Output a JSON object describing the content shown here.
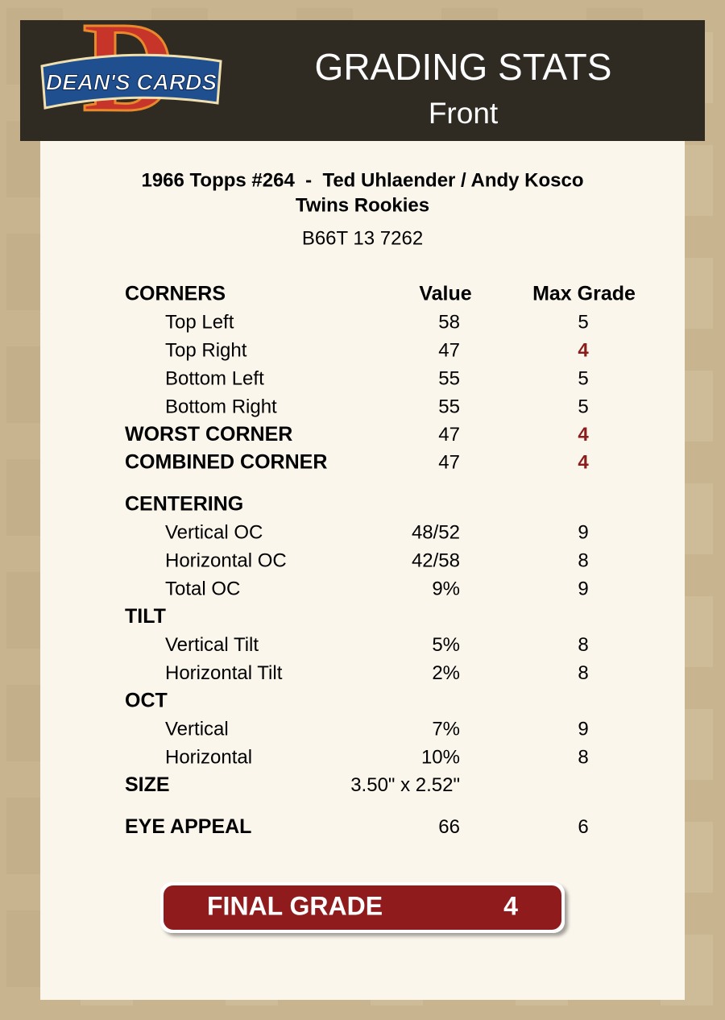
{
  "logo": {
    "initial": "D",
    "text": "DEAN'S CARDS"
  },
  "header": {
    "title": "GRADING STATS",
    "subtitle": "Front"
  },
  "card": {
    "title": "1966 Topps #264  -  Ted Uhlaender / Andy Kosco",
    "subtitle": "Twins Rookies",
    "cert": "B66T 13 7262"
  },
  "table": {
    "columns": [
      "Value",
      "Max Grade"
    ],
    "rows": [
      {
        "label": "CORNERS",
        "kind": "section"
      },
      {
        "label": "Top Left",
        "kind": "item",
        "value": 58,
        "max_grade": 5
      },
      {
        "label": "Top Right",
        "kind": "item",
        "value": 47,
        "max_grade": 4,
        "flag": true
      },
      {
        "label": "Bottom Left",
        "kind": "item",
        "value": 55,
        "max_grade": 5
      },
      {
        "label": "Bottom Right",
        "kind": "item",
        "value": 55,
        "max_grade": 5
      },
      {
        "label": "WORST CORNER",
        "kind": "section",
        "value": 47,
        "max_grade": 4,
        "flag": true
      },
      {
        "label": "COMBINED CORNER",
        "kind": "section",
        "value": 47,
        "max_grade": 4,
        "flag": true
      },
      {
        "label": "CENTERING",
        "kind": "section",
        "gap": true
      },
      {
        "label": "Vertical OC",
        "kind": "item",
        "value": "48/52",
        "max_grade": 9
      },
      {
        "label": "Horizontal OC",
        "kind": "item",
        "value": "42/58",
        "max_grade": 8
      },
      {
        "label": "Total OC",
        "kind": "item",
        "value": "9%",
        "max_grade": 9
      },
      {
        "label": "TILT",
        "kind": "section"
      },
      {
        "label": "Vertical Tilt",
        "kind": "item",
        "value": "5%",
        "max_grade": 8
      },
      {
        "label": "Horizontal Tilt",
        "kind": "item",
        "value": "2%",
        "max_grade": 8
      },
      {
        "label": "OCT",
        "kind": "section"
      },
      {
        "label": "Vertical",
        "kind": "item",
        "value": "7%",
        "max_grade": 9
      },
      {
        "label": "Horizontal",
        "kind": "item",
        "value": "10%",
        "max_grade": 8
      },
      {
        "label": "SIZE",
        "kind": "section",
        "value": "3.50\" x 2.52\""
      },
      {
        "label": "EYE APPEAL",
        "kind": "section",
        "value": 66,
        "max_grade": 6,
        "gap": true
      }
    ]
  },
  "final_grade": {
    "label": "FINAL GRADE",
    "value": 4
  }
}
